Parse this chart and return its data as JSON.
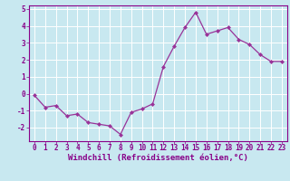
{
  "x": [
    0,
    1,
    2,
    3,
    4,
    5,
    6,
    7,
    8,
    9,
    10,
    11,
    12,
    13,
    14,
    15,
    16,
    17,
    18,
    19,
    20,
    21,
    22,
    23
  ],
  "y": [
    -0.1,
    -0.8,
    -0.7,
    -1.3,
    -1.2,
    -1.7,
    -1.8,
    -1.9,
    -2.4,
    -1.1,
    -0.9,
    -0.6,
    1.6,
    2.8,
    3.9,
    4.8,
    3.5,
    3.7,
    3.9,
    3.2,
    2.9,
    2.3,
    1.9,
    1.9
  ],
  "line_color": "#993399",
  "marker": "D",
  "marker_size": 2.0,
  "bg_color": "#c8e8f0",
  "grid_color": "#ffffff",
  "xlabel": "Windchill (Refroidissement éolien,°C)",
  "xlim": [
    -0.5,
    23.5
  ],
  "ylim": [
    -2.8,
    5.2
  ],
  "yticks": [
    -2,
    -1,
    0,
    1,
    2,
    3,
    4,
    5
  ],
  "xtick_labels": [
    "0",
    "1",
    "2",
    "3",
    "4",
    "5",
    "6",
    "7",
    "8",
    "9",
    "10",
    "11",
    "12",
    "13",
    "14",
    "15",
    "16",
    "17",
    "18",
    "19",
    "20",
    "21",
    "22",
    "23"
  ],
  "tick_fontsize": 5.5,
  "xlabel_fontsize": 6.5,
  "line_width": 0.9
}
